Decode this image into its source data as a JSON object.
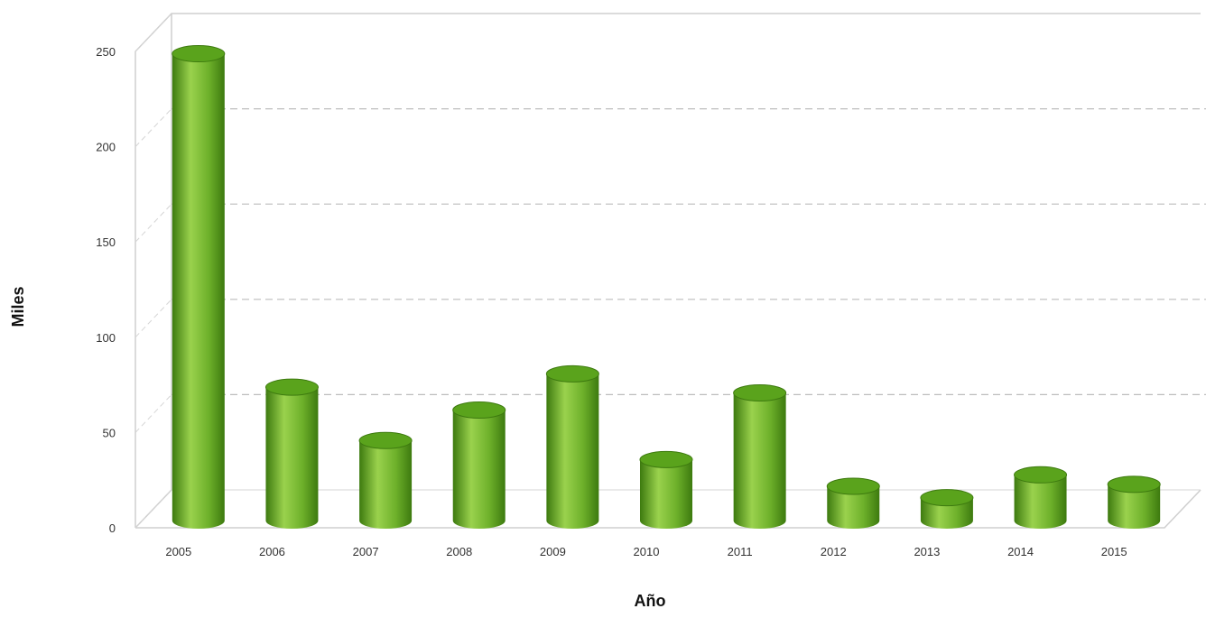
{
  "chart_data": {
    "type": "bar",
    "categories": [
      "2005",
      "2006",
      "2007",
      "2008",
      "2009",
      "2010",
      "2011",
      "2012",
      "2013",
      "2014",
      "2015"
    ],
    "values": [
      245,
      70,
      42,
      58,
      77,
      32,
      67,
      18,
      12,
      24,
      19
    ],
    "title": "",
    "xlabel": "Año",
    "ylabel": "Miles",
    "ylim": [
      0,
      250
    ],
    "yticks": [
      "0",
      "50",
      "100",
      "150",
      "200",
      "250"
    ],
    "grid": true,
    "bar_style": "3d-cylinder",
    "colors": {
      "bar": "#6db02a",
      "bar_dark": "#3d7a0f",
      "bar_light": "#9ad24d",
      "bar_top": "#5aa31c",
      "grid": "#bdbdbd"
    }
  }
}
